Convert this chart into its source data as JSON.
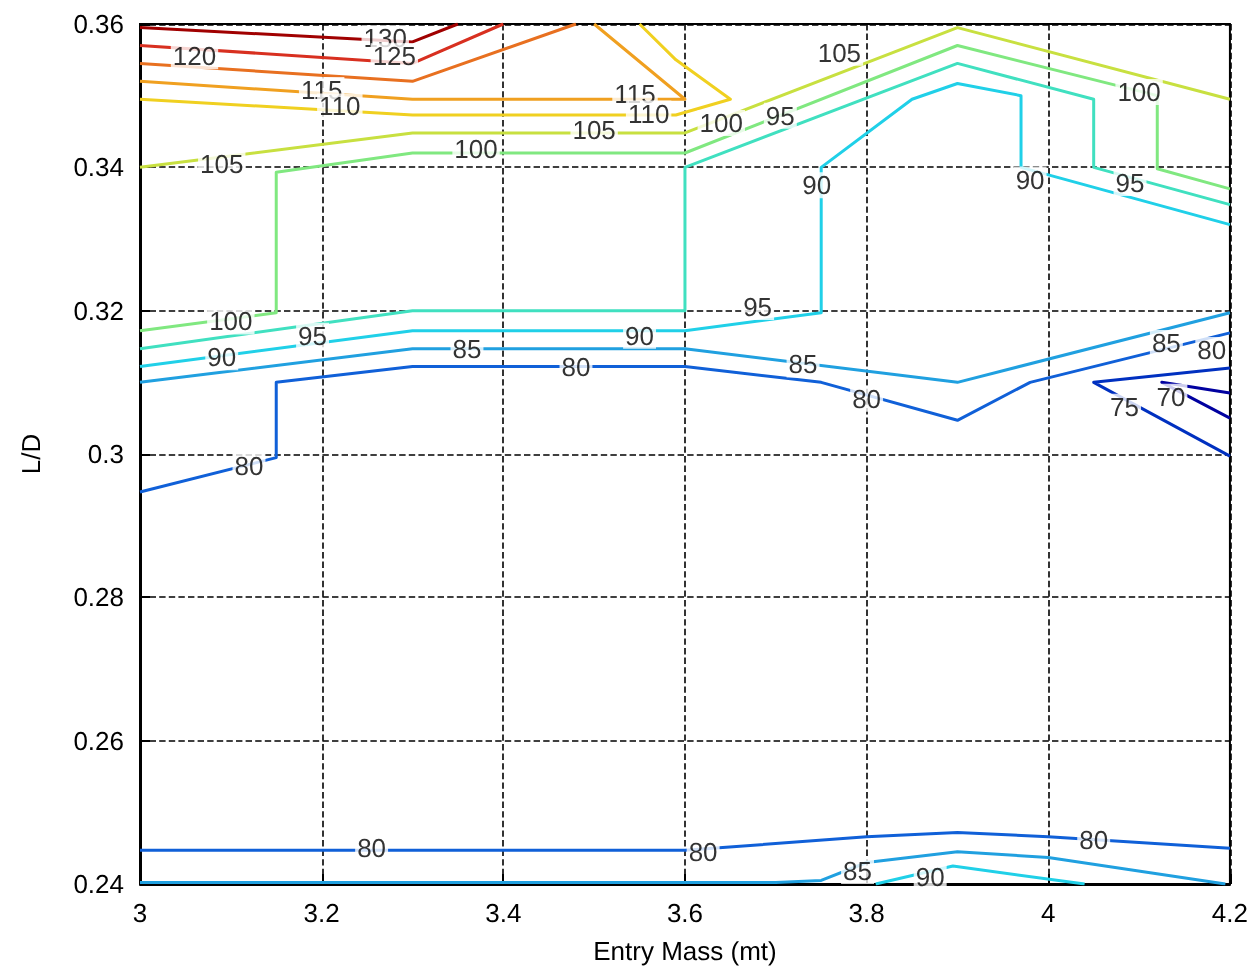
{
  "chart_data": {
    "type": "line",
    "xlabel": "Entry Mass (mt)",
    "ylabel": "L/D",
    "xlim": [
      3,
      4.2
    ],
    "ylim": [
      0.24,
      0.36
    ],
    "xticks": [
      3,
      3.2,
      3.4,
      3.6,
      3.8,
      4,
      4.2
    ],
    "yticks": [
      0.24,
      0.26,
      0.28,
      0.3,
      0.32,
      0.34,
      0.36
    ],
    "grid": true,
    "series": [
      {
        "color": "#a00000",
        "x": [
          3,
          3.3,
          3.35
        ],
        "values": [
          0.3595,
          0.3575,
          0.36
        ]
      },
      {
        "color": "#d83020",
        "x": [
          3,
          3.3,
          3.4
        ],
        "values": [
          0.357,
          0.3545,
          0.36
        ]
      },
      {
        "color": "#e87020",
        "x": [
          3,
          3.3,
          3.48
        ],
        "values": [
          0.3545,
          0.352,
          0.36
        ]
      },
      {
        "color": "#f0a020",
        "x": [
          3,
          3.3,
          3.6,
          3.5
        ],
        "values": [
          0.352,
          0.3495,
          0.3495,
          0.36
        ]
      },
      {
        "color": "#f0d020",
        "x": [
          3,
          3.3,
          3.59,
          3.65,
          3.59,
          3.55
        ],
        "values": [
          0.3495,
          0.3473,
          0.3473,
          0.3495,
          0.355,
          0.36
        ]
      },
      {
        "color": "#c8e040",
        "x": [
          3,
          3.3,
          3.6,
          3.9,
          4.2
        ],
        "values": [
          0.34,
          0.3448,
          0.3448,
          0.3595,
          0.3495
        ]
      },
      {
        "color": "#80e880",
        "x": [
          3,
          3.15,
          3.15,
          3.3,
          3.6,
          3.9,
          4.12,
          4.12,
          4.2
        ],
        "values": [
          0.3172,
          0.3197,
          0.3393,
          0.342,
          0.342,
          0.357,
          0.35,
          0.3398,
          0.337
        ]
      },
      {
        "color": "#40e0c0",
        "x": [
          3,
          3.3,
          3.6,
          3.6,
          3.9,
          4.05,
          4.05,
          4.2
        ],
        "values": [
          0.3147,
          0.32,
          0.32,
          0.34,
          0.3545,
          0.3495,
          0.34,
          0.3348
        ]
      },
      {
        "color": "#20d0e8",
        "x": [
          3,
          3.3,
          3.6,
          3.75,
          3.75,
          3.85,
          3.9,
          3.97,
          3.97,
          4.2
        ],
        "values": [
          0.3122,
          0.3172,
          0.3172,
          0.3197,
          0.34,
          0.3495,
          0.3517,
          0.35,
          0.34,
          0.332
        ]
      },
      {
        "color": "#20a0e0",
        "x": [
          3,
          3.3,
          3.6,
          3.9,
          4.2
        ],
        "values": [
          0.31,
          0.3147,
          0.3147,
          0.31,
          0.3197
        ]
      },
      {
        "color": "#1060d8",
        "x": [
          3,
          3.15,
          3.15,
          3.3,
          3.6,
          3.75,
          3.9,
          3.98,
          4.2
        ],
        "values": [
          0.2947,
          0.2995,
          0.31,
          0.3122,
          0.3122,
          0.31,
          0.3047,
          0.31,
          0.3169
        ]
      },
      {
        "color": "#0030c0",
        "x": [
          4.2,
          4.05,
          4.2
        ],
        "values": [
          0.312,
          0.31,
          0.2997
        ]
      },
      {
        "color": "#0000a0",
        "x": [
          4.2,
          4.125,
          4.2
        ],
        "values": [
          0.3085,
          0.31,
          0.305
        ]
      },
      {
        "color": "#1060d8",
        "x": [
          3,
          3.6,
          3.8,
          3.9,
          4,
          4.2
        ],
        "values": [
          0.2447,
          0.2447,
          0.2466,
          0.2472,
          0.2466,
          0.245
        ]
      },
      {
        "color": "#20a0e0",
        "x": [
          3,
          3.7,
          3.75,
          3.8,
          3.9,
          4,
          4.195
        ],
        "values": [
          0.2402,
          0.2402,
          0.2405,
          0.243,
          0.2445,
          0.2437,
          0.24
        ]
      },
      {
        "color": "#20d0e8",
        "x": [
          3.81,
          3.895,
          4.04
        ],
        "values": [
          0.24,
          0.2425,
          0.24
        ]
      }
    ],
    "annotations": [
      {
        "text": "130",
        "x": 3.27,
        "y": 0.358
      },
      {
        "text": "125",
        "x": 3.28,
        "y": 0.3555
      },
      {
        "text": "120",
        "x": 3.06,
        "y": 0.3555
      },
      {
        "text": "115",
        "x": 3.2,
        "y": 0.3508
      },
      {
        "text": "110",
        "x": 3.22,
        "y": 0.3485
      },
      {
        "text": "115",
        "x": 3.545,
        "y": 0.3503
      },
      {
        "text": "110",
        "x": 3.56,
        "y": 0.3475
      },
      {
        "text": "105",
        "x": 3.09,
        "y": 0.3405
      },
      {
        "text": "100",
        "x": 3.37,
        "y": 0.3425
      },
      {
        "text": "105",
        "x": 3.5,
        "y": 0.3452
      },
      {
        "text": "100",
        "x": 3.64,
        "y": 0.3462
      },
      {
        "text": "95",
        "x": 3.705,
        "y": 0.3472
      },
      {
        "text": "105",
        "x": 3.77,
        "y": 0.356
      },
      {
        "text": "100",
        "x": 4.1,
        "y": 0.3505
      },
      {
        "text": "90",
        "x": 3.745,
        "y": 0.3375
      },
      {
        "text": "90",
        "x": 3.98,
        "y": 0.3383
      },
      {
        "text": "95",
        "x": 4.09,
        "y": 0.3378
      },
      {
        "text": "100",
        "x": 3.1,
        "y": 0.3185
      },
      {
        "text": "95",
        "x": 3.19,
        "y": 0.3165
      },
      {
        "text": "90",
        "x": 3.09,
        "y": 0.3135
      },
      {
        "text": "90",
        "x": 3.55,
        "y": 0.3165
      },
      {
        "text": "95",
        "x": 3.68,
        "y": 0.3205
      },
      {
        "text": "85",
        "x": 3.36,
        "y": 0.3147
      },
      {
        "text": "80",
        "x": 3.48,
        "y": 0.3122
      },
      {
        "text": "85",
        "x": 3.73,
        "y": 0.3125
      },
      {
        "text": "80",
        "x": 3.8,
        "y": 0.3077
      },
      {
        "text": "85",
        "x": 4.13,
        "y": 0.3155
      },
      {
        "text": "80",
        "x": 4.18,
        "y": 0.3145
      },
      {
        "text": "75",
        "x": 4.084,
        "y": 0.3066
      },
      {
        "text": "70",
        "x": 4.135,
        "y": 0.308
      },
      {
        "text": "80",
        "x": 3.12,
        "y": 0.2983
      },
      {
        "text": "80",
        "x": 3.255,
        "y": 0.245
      },
      {
        "text": "80",
        "x": 3.62,
        "y": 0.2445
      },
      {
        "text": "80",
        "x": 4.05,
        "y": 0.2462
      },
      {
        "text": "85",
        "x": 3.79,
        "y": 0.2418
      },
      {
        "text": "90",
        "x": 3.87,
        "y": 0.241
      }
    ]
  }
}
